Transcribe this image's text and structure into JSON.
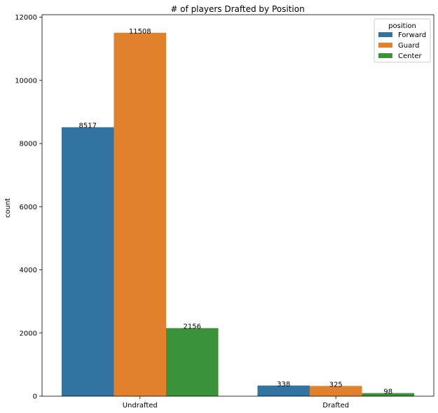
{
  "chart_data": {
    "type": "bar",
    "title": "# of players Drafted by Position",
    "xlabel": "",
    "ylabel": "count",
    "categories": [
      "Undrafted",
      "Drafted"
    ],
    "series": [
      {
        "name": "Forward",
        "color": "#3274a1",
        "values": [
          8517,
          338
        ]
      },
      {
        "name": "Guard",
        "color": "#e1812c",
        "values": [
          11508,
          325
        ]
      },
      {
        "name": "Center",
        "color": "#3a923a",
        "values": [
          2156,
          98
        ]
      }
    ],
    "ylim": [
      0,
      12080
    ],
    "yticks": [
      0,
      2000,
      4000,
      6000,
      8000,
      10000,
      12000
    ],
    "data_labels": [
      [
        "8517",
        "338"
      ],
      [
        "11508",
        "325"
      ],
      [
        "2156",
        "98"
      ]
    ],
    "grid": false,
    "legend": {
      "title": "position",
      "placement": "top-right"
    }
  }
}
